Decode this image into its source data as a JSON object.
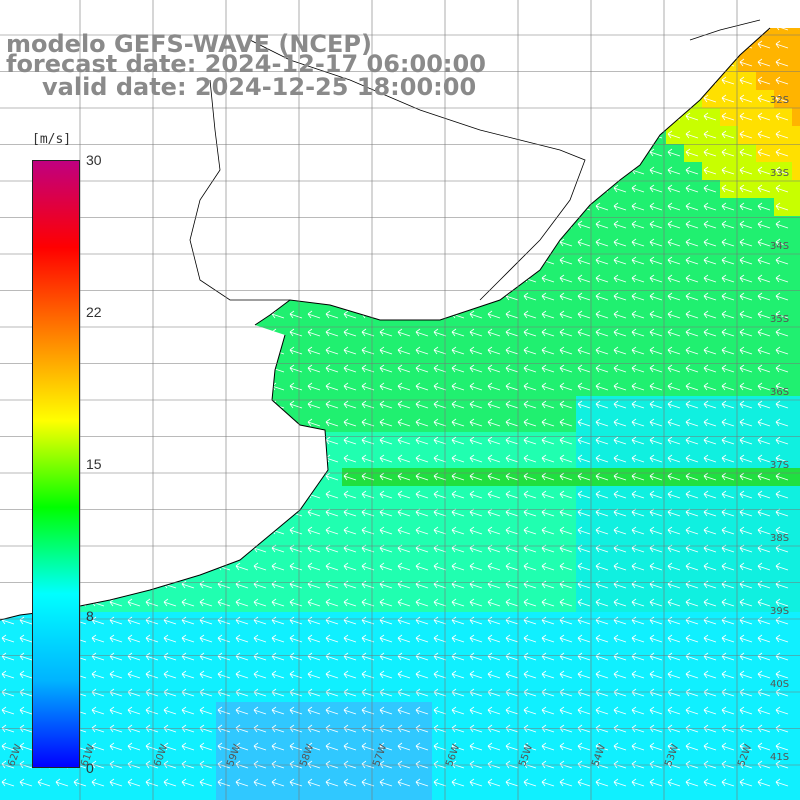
{
  "title": {
    "line1": "modelo GEFS-WAVE (NCEP)",
    "line2": "forecast date: 2024-12-17 06:00:00",
    "line3": "valid date: 2024-12-25 18:00:00"
  },
  "colorbar": {
    "unit": "[m/s]",
    "ticks": [
      "30",
      "22",
      "15",
      "8",
      "0"
    ],
    "colors": [
      "#0000ff",
      "#00b4ff",
      "#00ffff",
      "#00ff00",
      "#ffff00",
      "#ff8000",
      "#ff0000",
      "#c00080"
    ]
  },
  "map": {
    "lat_labels": [
      "32S",
      "33S",
      "34S",
      "35S",
      "36S",
      "37S",
      "38S",
      "39S",
      "40S",
      "41S"
    ],
    "lon_labels": [
      "62W",
      "61W",
      "60W",
      "59W",
      "58W",
      "57W",
      "56W",
      "55W",
      "54W",
      "53W",
      "52W"
    ],
    "wind_direction": "from SE to NW",
    "land_color": "#ffffff",
    "grid_color": "#777777"
  }
}
